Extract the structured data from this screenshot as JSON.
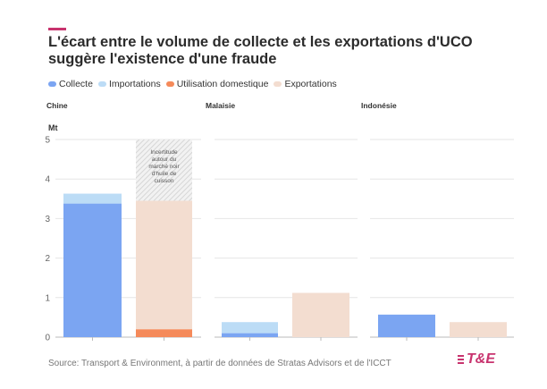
{
  "title": "L'écart entre le volume de collecte et les exportations d'UCO suggère l'existence d'une fraude",
  "legend": [
    {
      "label": "Collecte",
      "color": "#7ba5f2"
    },
    {
      "label": "Importations",
      "color": "#bcdcf6"
    },
    {
      "label": "Utilisation domestique",
      "color": "#f58a5a"
    },
    {
      "label": "Exportations",
      "color": "#f3ddd0"
    }
  ],
  "source": "Source: Transport & Environment, à partir de données de Stratas Advisors et de l'ICCT",
  "logo_text": "T&E",
  "chart_data": {
    "type": "bar",
    "stacked": true,
    "ylabel": "Mt",
    "ylim": [
      0,
      5
    ],
    "yticks": [
      0,
      1,
      2,
      3,
      4,
      5
    ],
    "grid": true,
    "legend_position": "top-left",
    "panels": [
      {
        "name": "Chine",
        "bars": [
          {
            "segments": [
              {
                "series": "Collecte",
                "value": 3.38
              },
              {
                "series": "Importations",
                "value": 0.25
              }
            ]
          },
          {
            "segments": [
              {
                "series": "Utilisation domestique",
                "value": 0.2
              },
              {
                "series": "Exportations",
                "value": 3.25
              }
            ],
            "uncertainty": {
              "from": 3.45,
              "to": 5,
              "label": "Incertitude autour du marché noir d'huile de cuisson"
            }
          }
        ]
      },
      {
        "name": "Malaisie",
        "bars": [
          {
            "segments": [
              {
                "series": "Collecte",
                "value": 0.1
              },
              {
                "series": "Importations",
                "value": 0.28
              }
            ]
          },
          {
            "segments": [
              {
                "series": "Exportations",
                "value": 1.12
              }
            ]
          }
        ]
      },
      {
        "name": "Indonésie",
        "bars": [
          {
            "segments": [
              {
                "series": "Collecte",
                "value": 0.57
              }
            ]
          },
          {
            "segments": [
              {
                "series": "Exportations",
                "value": 0.38
              }
            ]
          }
        ]
      }
    ]
  }
}
